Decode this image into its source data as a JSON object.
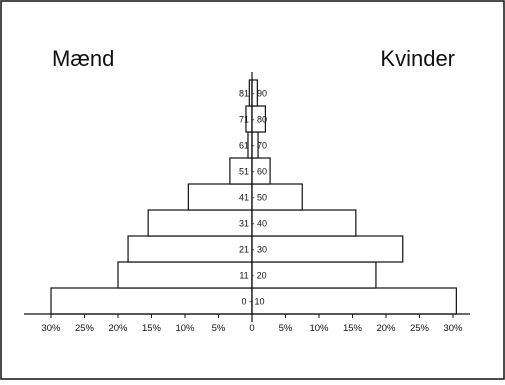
{
  "chart_data": {
    "type": "bar",
    "orientation": "horizontal",
    "categories": [
      "0 - 10",
      "11 - 20",
      "21 - 30",
      "31 - 40",
      "41 - 50",
      "51 - 60",
      "61 - 70",
      "71 - 80",
      "81 - 90"
    ],
    "series": [
      {
        "name": "Mænd",
        "side": "left",
        "values": [
          30,
          20,
          18.5,
          15.5,
          9.5,
          3.3,
          0.6,
          0.9,
          0.4
        ]
      },
      {
        "name": "Kvinder",
        "side": "right",
        "values": [
          30.5,
          18.5,
          22.5,
          15.5,
          7.5,
          2.7,
          0.9,
          2.0,
          0.8
        ]
      }
    ],
    "xticks": [
      "30%",
      "25%",
      "20%",
      "15%",
      "10%",
      "5%",
      "0",
      "5%",
      "10%",
      "15%",
      "20%",
      "25%",
      "30%"
    ],
    "xlim": [
      -30,
      30
    ],
    "grid": false,
    "colors": {
      "bar_fill": "#ffffff",
      "bar_stroke": "#111111",
      "frame": "#111111"
    }
  }
}
